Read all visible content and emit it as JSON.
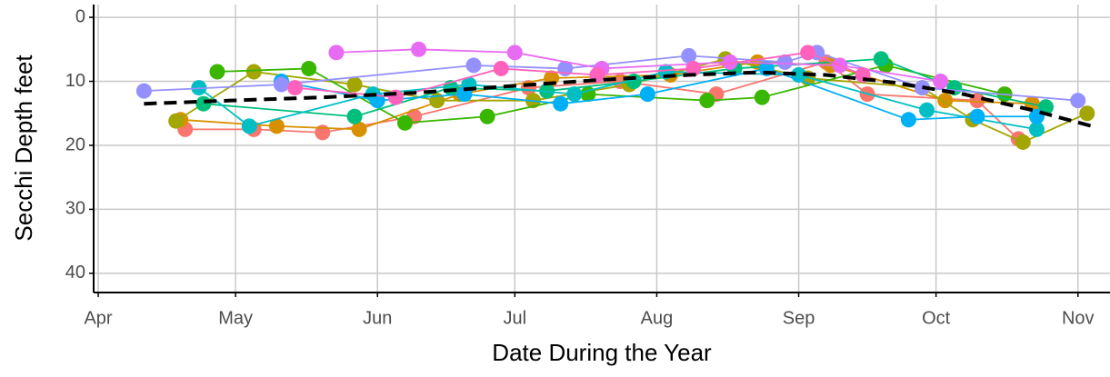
{
  "chart_data": {
    "type": "line",
    "xlabel": "Date During the Year",
    "ylabel": "Secchi Depth feet",
    "xlim": [
      90,
      312
    ],
    "ylim": [
      43,
      -2
    ],
    "xticks": [
      {
        "value": 91,
        "label": "Apr"
      },
      {
        "value": 121,
        "label": "May"
      },
      {
        "value": 152,
        "label": "Jun"
      },
      {
        "value": 182,
        "label": "Jul"
      },
      {
        "value": 213,
        "label": "Aug"
      },
      {
        "value": 244,
        "label": "Sep"
      },
      {
        "value": 274,
        "label": "Oct"
      },
      {
        "value": 305,
        "label": "Nov"
      }
    ],
    "yticks": [
      0,
      10,
      20,
      30,
      40
    ],
    "grid": true,
    "series": [
      {
        "color": "#F8766D",
        "x": [
          110,
          125,
          140,
          160,
          185,
          205,
          226,
          250,
          259,
          283,
          292
        ],
        "values": [
          17.5,
          17.5,
          18,
          15.5,
          11,
          10,
          12,
          7,
          12,
          13,
          19
        ]
      },
      {
        "color": "#D89000",
        "x": [
          109,
          130,
          148,
          170,
          190,
          216,
          235,
          251,
          276,
          295
        ],
        "values": [
          16,
          17,
          17.5,
          12,
          9.5,
          9,
          7,
          7.5,
          13,
          13.5
        ]
      },
      {
        "color": "#A3A500",
        "x": [
          108,
          125,
          147,
          165,
          186,
          207,
          228,
          246,
          271,
          282,
          293,
          307
        ],
        "values": [
          16.2,
          8.5,
          10.5,
          13,
          13,
          10.5,
          6.5,
          9.5,
          11,
          16,
          19.5,
          15
        ]
      },
      {
        "color": "#39B600",
        "x": [
          117,
          137,
          158,
          176,
          198,
          224,
          236,
          263,
          289
        ],
        "values": [
          8.5,
          8,
          16.5,
          15.5,
          12,
          13,
          12.5,
          7.5,
          12
        ]
      },
      {
        "color": "#00BF7D",
        "x": [
          114,
          147,
          168,
          189,
          208,
          230,
          262,
          278,
          298
        ],
        "values": [
          13.5,
          15.5,
          11,
          11.5,
          10,
          8,
          6.5,
          11,
          14
        ]
      },
      {
        "color": "#00BFC4",
        "x": [
          113,
          124,
          151,
          172,
          195,
          215,
          244,
          272,
          296
        ],
        "values": [
          11,
          17,
          12,
          10.5,
          12,
          8.5,
          9,
          14.5,
          17.5
        ]
      },
      {
        "color": "#00B0F6",
        "x": [
          131,
          152,
          171,
          192,
          211,
          237,
          268,
          283,
          296
        ],
        "values": [
          10,
          13,
          12,
          13.5,
          12,
          8,
          16,
          15.5,
          15.5
        ]
      },
      {
        "color": "#9590FF",
        "x": [
          101,
          131,
          173,
          193,
          220,
          241,
          248,
          271,
          305
        ],
        "values": [
          11.5,
          10.5,
          7.5,
          8,
          6,
          7,
          5.5,
          11,
          13
        ]
      },
      {
        "color": "#E76BF3",
        "x": [
          143,
          161,
          182,
          201,
          229,
          253,
          275
        ],
        "values": [
          5.5,
          5,
          5.5,
          8,
          7,
          7.5,
          10
        ]
      },
      {
        "color": "#FF62BC",
        "x": [
          134,
          156,
          179,
          200,
          221,
          246,
          258
        ],
        "values": [
          11,
          12.5,
          8,
          9,
          8,
          5.5,
          9
        ]
      }
    ],
    "trend": {
      "color": "#000000",
      "x": [
        101,
        120,
        140,
        160,
        180,
        200,
        220,
        235,
        250,
        265,
        280,
        295,
        308
      ],
      "values": [
        13.5,
        13,
        12.5,
        11.8,
        10.8,
        9.8,
        9,
        8.6,
        9,
        10.2,
        12,
        14.5,
        17
      ]
    }
  }
}
